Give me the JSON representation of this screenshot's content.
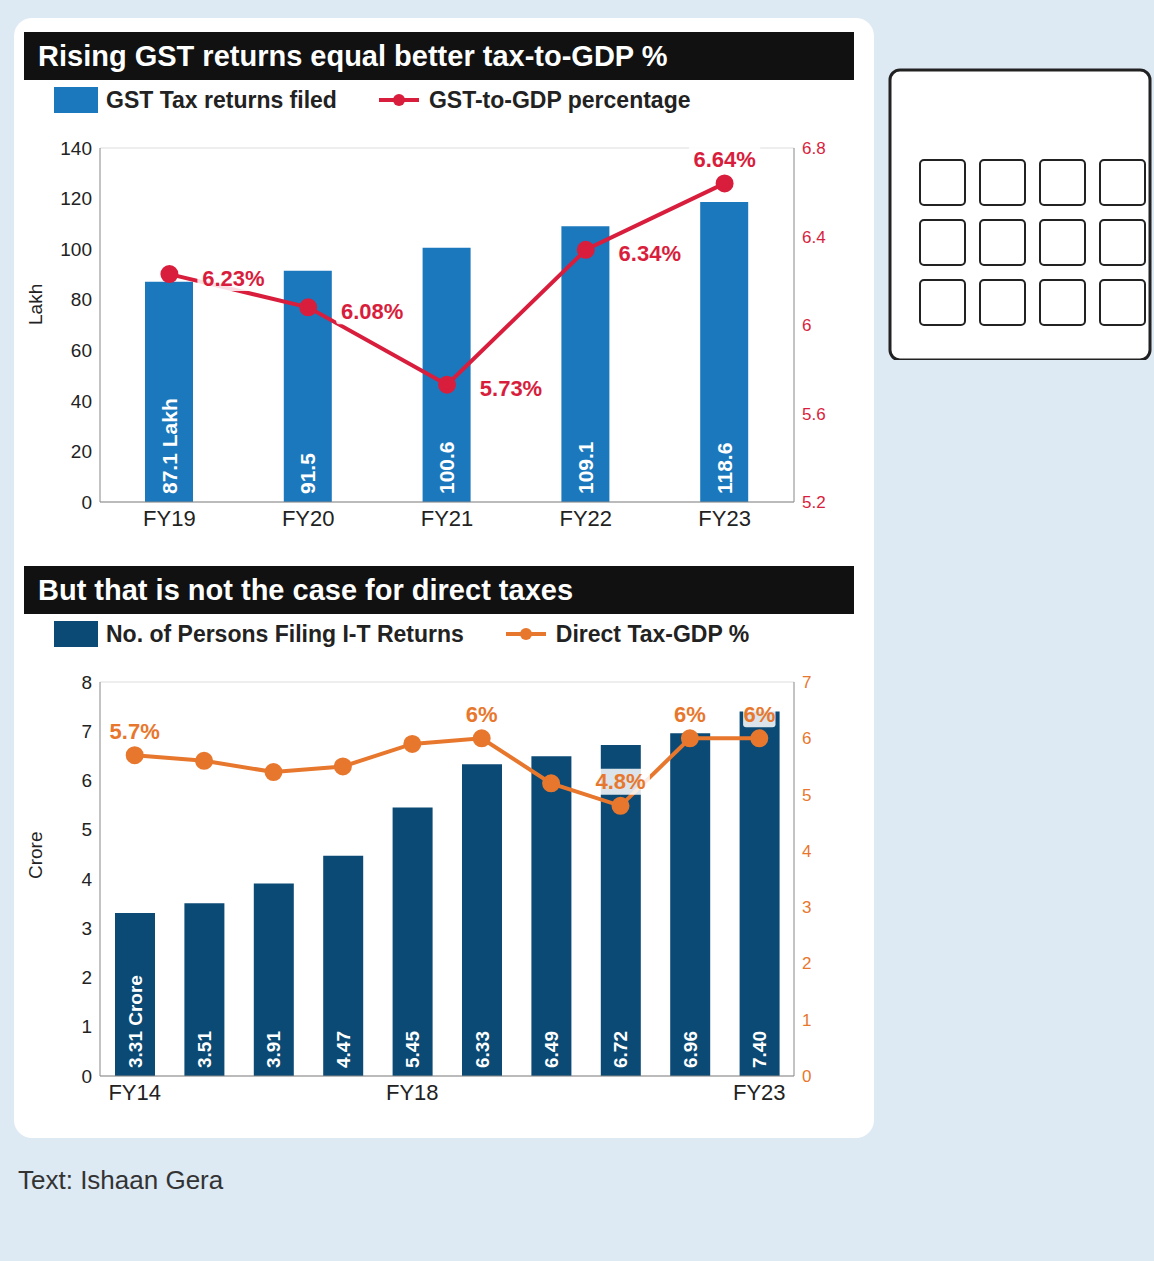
{
  "chart_data": [
    {
      "type": "bar",
      "title": "Rising GST returns equal better tax-to-GDP %",
      "categories": [
        "FY19",
        "FY20",
        "FY21",
        "FY22",
        "FY23"
      ],
      "y_label": "Lakh",
      "ylim": [
        0,
        140
      ],
      "yticks": [
        0,
        20,
        40,
        60,
        80,
        100,
        120,
        140
      ],
      "y2lim": [
        5.2,
        6.8
      ],
      "y2ticks": [
        5.2,
        5.6,
        6,
        6.4,
        6.8
      ],
      "grid": true,
      "data_labels": true,
      "series": [
        {
          "name": "GST Tax returns filed",
          "type": "bar",
          "color": "#1b78bd",
          "values": [
            87.1,
            91.5,
            100.6,
            109.1,
            118.6
          ],
          "value_labels": [
            "87.1 Lakh",
            "91.5",
            "100.6",
            "109.1",
            "118.6"
          ]
        },
        {
          "name": "GST-to-GDP percentage",
          "type": "line",
          "axis": "y2",
          "color": "#d81e3c",
          "marker": "circle",
          "values": [
            6.23,
            6.08,
            5.73,
            6.34,
            6.64
          ],
          "value_labels": [
            "6.23%",
            "6.08%",
            "5.73%",
            "6.34%",
            "6.64%"
          ]
        }
      ]
    },
    {
      "type": "bar",
      "title": "But that is not the case for direct taxes",
      "categories": [
        "FY14",
        null,
        null,
        null,
        "FY18",
        null,
        null,
        null,
        null,
        "FY23"
      ],
      "y_label": "Crore",
      "ylim": [
        0,
        8
      ],
      "yticks": [
        0,
        1,
        2,
        3,
        4,
        5,
        6,
        7,
        8
      ],
      "y2lim": [
        0,
        7
      ],
      "y2ticks": [
        0,
        1,
        2,
        3,
        4,
        5,
        6,
        7
      ],
      "grid": true,
      "data_labels": true,
      "series": [
        {
          "name": "No. of Persons Filing I-T Returns",
          "type": "bar",
          "color": "#0b4a74",
          "values": [
            3.31,
            3.51,
            3.91,
            4.47,
            5.45,
            6.33,
            6.49,
            6.72,
            6.96,
            7.4
          ],
          "value_labels": [
            "3.31 Crore",
            "3.51",
            "3.91",
            "4.47",
            "5.45",
            "6.33",
            "6.49",
            "6.72",
            "6.96",
            "7.40"
          ]
        },
        {
          "name": "Direct Tax-GDP %",
          "type": "line",
          "axis": "y2",
          "color": "#e8772e",
          "marker": "circle",
          "values": [
            5.7,
            5.6,
            5.4,
            5.5,
            5.9,
            6,
            5.2,
            4.8,
            6,
            6
          ],
          "value_labels": [
            "5.7%",
            null,
            null,
            null,
            null,
            "6%",
            null,
            "4.8%",
            "6%",
            "6%"
          ]
        }
      ]
    }
  ],
  "credit": "Text: Ishaan Gera"
}
